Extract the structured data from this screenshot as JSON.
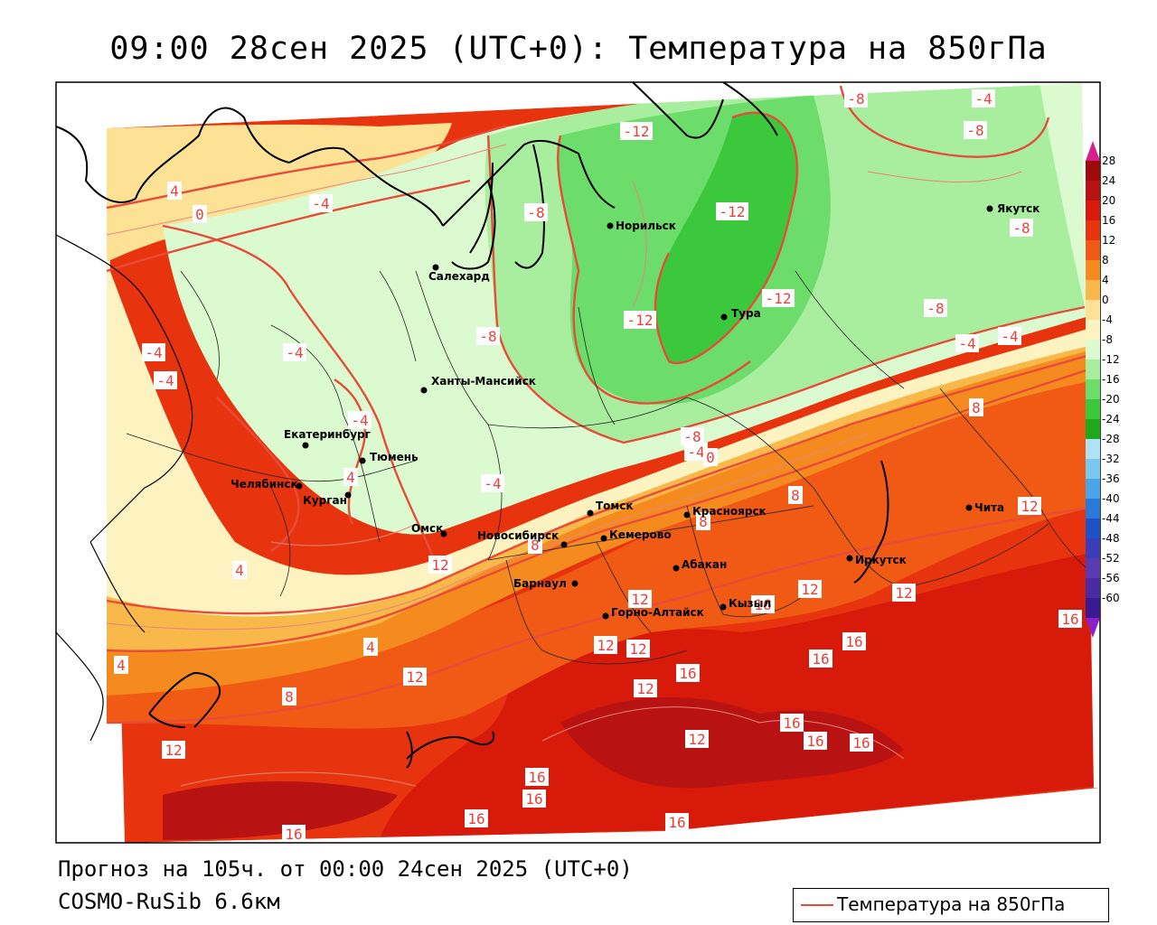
{
  "header": {
    "title": "09:00 28сен 2025 (UTC+0): Температура на 850гПа"
  },
  "footer": {
    "forecast_line": "Прогноз на 105ч. от 00:00 24сен 2025 (UTC+0)",
    "model_line": "COSMO-RuSib 6.6км"
  },
  "legend": {
    "series_label": "Температура на 850гПа",
    "line_color": "#e84b3a"
  },
  "colorbar": {
    "ticks": [
      "28",
      "24",
      "20",
      "16",
      "12",
      "8",
      "4",
      "0",
      "-4",
      "-8",
      "-12",
      "-16",
      "-20",
      "-24",
      "-28",
      "-32",
      "-36",
      "-40",
      "-44",
      "-48",
      "-52",
      "-56",
      "-60"
    ],
    "colors": [
      "#9e0a0a",
      "#b81212",
      "#d81a0a",
      "#e8340e",
      "#f05a14",
      "#f58a1e",
      "#f8b84a",
      "#fde296",
      "#fdf3c0",
      "#dcfad0",
      "#a8ee9e",
      "#6cdc6a",
      "#3cc83c",
      "#1ea81e",
      "#aee2f5",
      "#78c8f0",
      "#4aa4e8",
      "#2a78d8",
      "#1e50c8",
      "#3a3cb8",
      "#5a3ab0",
      "#4a2aa0",
      "#3a1a90"
    ],
    "top_arrow_color": "#d8208a",
    "bottom_arrow_color": "#8a20c8"
  },
  "cities": [
    {
      "name": "Салехард"
    },
    {
      "name": "Норильск"
    },
    {
      "name": "Якутск"
    },
    {
      "name": "Тура"
    },
    {
      "name": "Ханты-Мансийск"
    },
    {
      "name": "Екатеринбург"
    },
    {
      "name": "Тюмень"
    },
    {
      "name": "Челябинск"
    },
    {
      "name": "Курган"
    },
    {
      "name": "Омск"
    },
    {
      "name": "Томск"
    },
    {
      "name": "Красноярск"
    },
    {
      "name": "Новосибирск"
    },
    {
      "name": "Кемерово"
    },
    {
      "name": "Абакан"
    },
    {
      "name": "Барнаул"
    },
    {
      "name": "Горно-Алтайск"
    },
    {
      "name": "Кызыл"
    },
    {
      "name": "Иркутск"
    },
    {
      "name": "Чита"
    }
  ],
  "isotherm_labels": [
    "-8",
    "-4",
    "-12",
    "-8",
    "4",
    "0",
    "-4",
    "-8",
    "-12",
    "-8",
    "-12",
    "-12",
    "-8",
    "-8",
    "-4",
    "-4",
    "-4",
    "-4",
    "-4",
    "-8",
    "-4",
    "-4",
    "0",
    "-4",
    "4",
    "8",
    "8",
    "8",
    "8",
    "12",
    "12",
    "12",
    "12",
    "12",
    "12",
    "12",
    "12",
    "4",
    "8",
    "12",
    "16",
    "16",
    "16",
    "16",
    "16",
    "16",
    "16",
    "16",
    "16",
    "16",
    "16",
    "16",
    "16",
    "4",
    "12",
    "4",
    "12"
  ]
}
